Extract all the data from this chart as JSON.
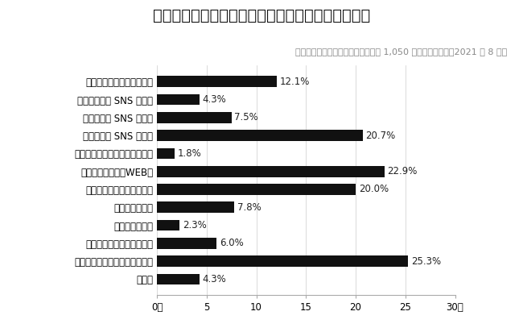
{
  "title": "吸水型サニタリーショーツの認知経路（複数回答）",
  "subtitle": "吸水型サニタリーショーツの認知者 1,050 人にアンケート（2021 年 8 月）",
  "categories": [
    "友人・知人から直接聞いて",
    "友人・知人の SNS を見て",
    "ブランドの SNS を見て",
    "上記以外の SNS を見て",
    "クラウドファンディングで見て",
    "ニュースを見て（WEB）",
    "ニュースを見て（テレビ）",
    "雑誌記事を見て",
    "新聞記事を見て",
    "店頭で見かけて（百貨店）",
    "店頭で見かけて（百貨店以外）",
    "その他"
  ],
  "values": [
    12.1,
    4.3,
    7.5,
    20.7,
    1.8,
    22.9,
    20.0,
    7.8,
    2.3,
    6.0,
    25.3,
    4.3
  ],
  "bar_color": "#111111",
  "background_color": "#ffffff",
  "xlim": [
    0,
    30
  ],
  "xticks": [
    0,
    5,
    10,
    15,
    20,
    25,
    30
  ],
  "xtick_labels": [
    "0％",
    "5",
    "10",
    "15",
    "20",
    "25",
    "30％"
  ],
  "title_fontsize": 14,
  "subtitle_fontsize": 8,
  "label_fontsize": 8.5,
  "value_fontsize": 8.5,
  "tick_fontsize": 8.5
}
